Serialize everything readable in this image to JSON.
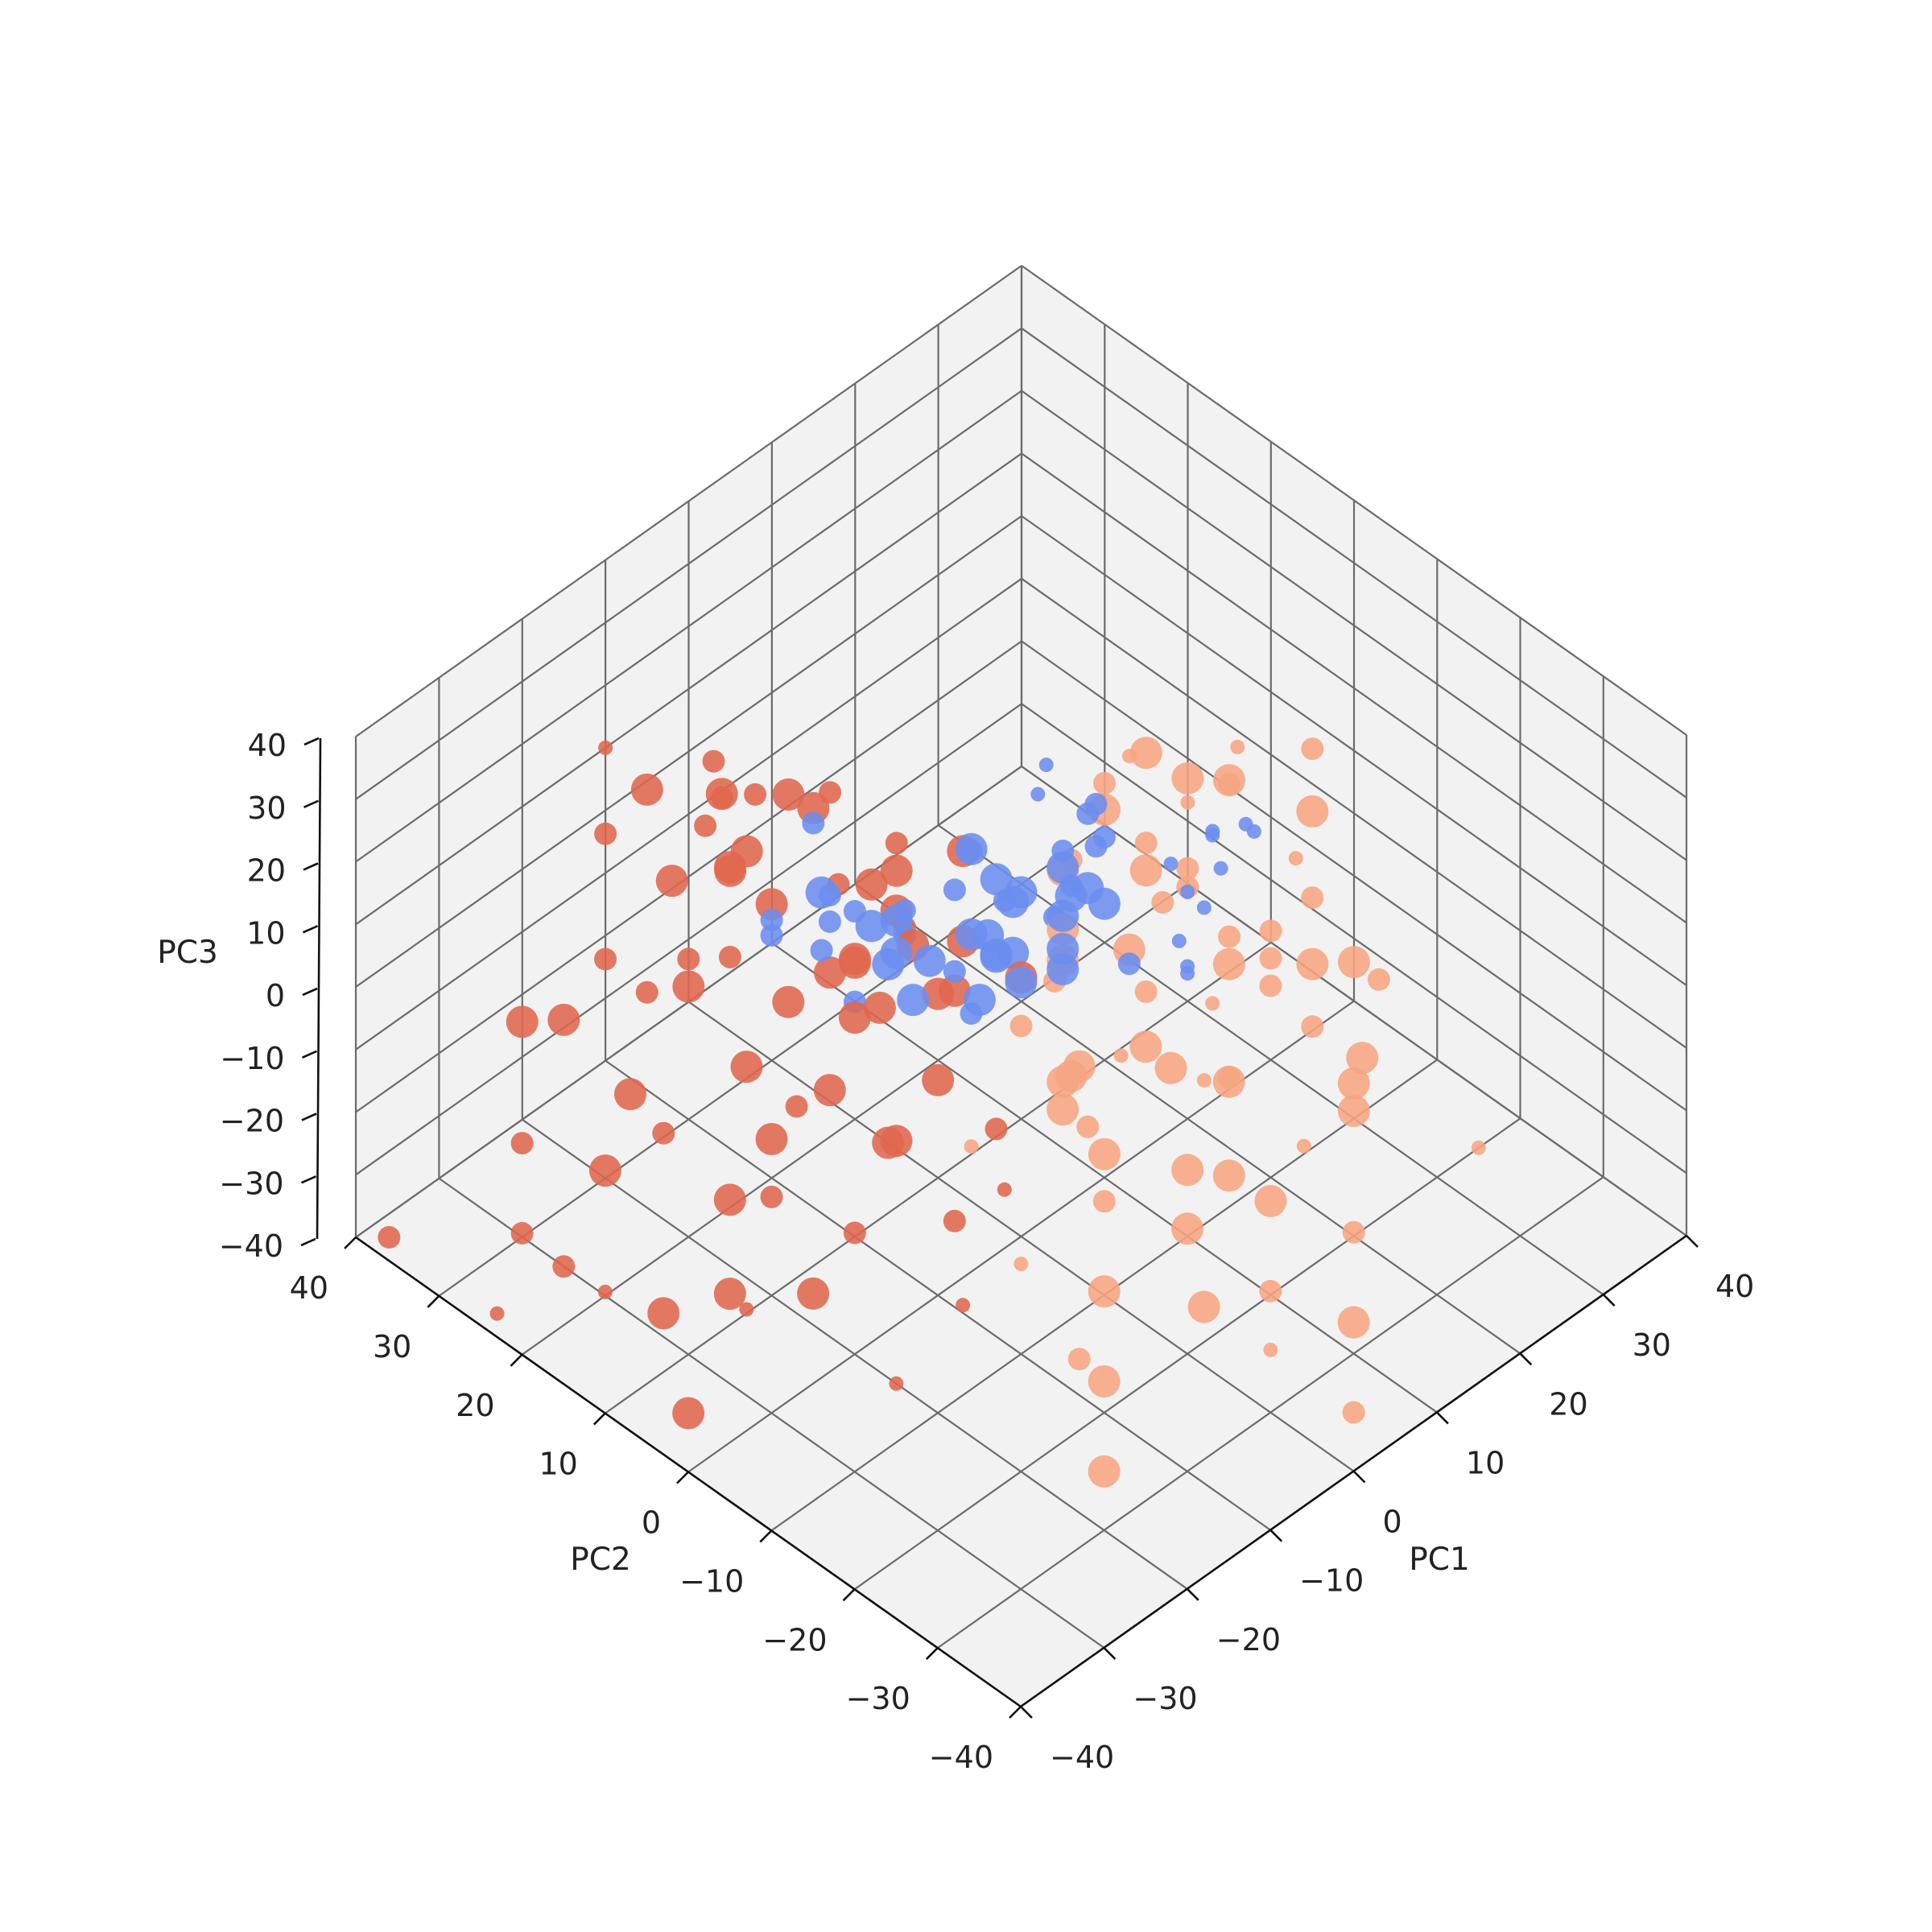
{
  "chart_data": {
    "type": "scatter",
    "projection": "3d",
    "xlabel": "PC1",
    "ylabel": "PC2",
    "zlabel": "PC3",
    "xlim": [
      -40,
      40
    ],
    "ylim": [
      -40,
      40
    ],
    "zlim": [
      -40,
      40
    ],
    "ticks": {
      "x": [
        "−40",
        "−30",
        "−20",
        "−10",
        "0",
        "10",
        "20",
        "30",
        "40"
      ],
      "y": [
        "−40",
        "−30",
        "−20",
        "−10",
        "0",
        "10",
        "20",
        "30",
        "40"
      ],
      "z": [
        "−40",
        "−30",
        "−20",
        "−10",
        "0",
        "10",
        "20",
        "30",
        "40"
      ]
    },
    "grid": true,
    "legend": "none",
    "marker_size_range": [
      1,
      4
    ],
    "series": [
      {
        "color": "#6b8def",
        "points": [
          [
            4,
            -5,
            30,
            2
          ],
          [
            15,
            12,
            10,
            1
          ],
          [
            10,
            1,
            12,
            2
          ],
          [
            3,
            -2,
            18,
            3
          ],
          [
            0,
            0,
            15,
            3
          ],
          [
            -5,
            -5,
            10,
            3
          ],
          [
            -3,
            1,
            10,
            3
          ],
          [
            4,
            5,
            5,
            3
          ],
          [
            -7,
            1,
            8,
            2
          ],
          [
            6,
            12,
            5,
            3
          ],
          [
            2,
            4,
            8,
            2
          ],
          [
            -6,
            5,
            5,
            3
          ],
          [
            1,
            9,
            6,
            2
          ],
          [
            -2,
            1,
            6,
            3
          ],
          [
            8,
            2,
            5,
            3
          ],
          [
            -10,
            5,
            10,
            3
          ],
          [
            -8,
            15,
            8,
            2
          ],
          [
            -10,
            10,
            12,
            2
          ],
          [
            -12,
            12,
            15,
            3
          ],
          [
            -8,
            6,
            14,
            2
          ],
          [
            -6,
            12,
            4,
            3
          ],
          [
            1,
            4,
            0,
            3
          ],
          [
            3,
            9,
            -3,
            3
          ],
          [
            -3,
            12,
            2,
            3
          ],
          [
            -10,
            14,
            2,
            2
          ],
          [
            9,
            4,
            -1,
            3
          ],
          [
            11,
            5,
            1,
            2
          ],
          [
            0,
            14,
            -5,
            2
          ],
          [
            -4,
            12,
            -4,
            3
          ],
          [
            -1,
            4,
            -5,
            3
          ],
          [
            5,
            6,
            -5,
            3
          ],
          [
            0,
            6,
            -10,
            2
          ],
          [
            -5,
            8,
            -5,
            3
          ],
          [
            10,
            6,
            -4,
            2
          ],
          [
            -5,
            20,
            12,
            2
          ],
          [
            -12,
            18,
            5,
            2
          ],
          [
            -6,
            17,
            0,
            2
          ],
          [
            -8,
            22,
            -5,
            2
          ],
          [
            -6,
            14,
            -10,
            2
          ],
          [
            3,
            -2,
            5,
            3
          ],
          [
            6,
            9,
            3,
            3
          ],
          [
            15,
            5,
            5,
            2
          ],
          [
            12,
            10,
            10,
            1
          ],
          [
            13,
            -5,
            12,
            1
          ],
          [
            2,
            -11,
            12,
            2
          ],
          [
            8,
            -11,
            10,
            1
          ],
          [
            9,
            -11,
            5,
            1
          ],
          [
            10,
            -10,
            2,
            1
          ],
          [
            19,
            -4,
            10,
            1
          ],
          [
            15,
            -7,
            5,
            1
          ],
          [
            22,
            -1,
            5,
            1
          ],
          [
            23,
            -4,
            8,
            1
          ],
          [
            25,
            -3,
            4,
            1
          ],
          [
            18,
            -2,
            0,
            1
          ],
          [
            22,
            -2,
            0,
            1
          ],
          [
            5,
            0,
            -2,
            3
          ],
          [
            12,
            2,
            0,
            3
          ],
          [
            16,
            8,
            5,
            2
          ],
          [
            14,
            9,
            0,
            2
          ],
          [
            8,
            14,
            1,
            2
          ],
          [
            15,
            7,
            -5,
            3
          ]
        ]
      },
      {
        "color": "#e0664d",
        "points": [
          [
            -3,
            25,
            10,
            3
          ],
          [
            -5,
            28,
            0,
            3
          ],
          [
            0,
            25,
            5,
            3
          ],
          [
            5,
            28,
            0,
            2
          ],
          [
            -5,
            30,
            -5,
            3
          ],
          [
            -2,
            35,
            5,
            2
          ],
          [
            0,
            38,
            -10,
            2
          ],
          [
            -10,
            40,
            10,
            1
          ],
          [
            -3,
            15,
            5,
            3
          ],
          [
            5,
            20,
            -5,
            3
          ],
          [
            -5,
            15,
            -5,
            3
          ],
          [
            -10,
            25,
            5,
            3
          ],
          [
            -12,
            30,
            0,
            3
          ],
          [
            -3,
            10,
            0,
            3
          ],
          [
            3,
            10,
            -5,
            3
          ],
          [
            8,
            15,
            0,
            3
          ],
          [
            -5,
            18,
            -10,
            3
          ],
          [
            -8,
            22,
            0,
            3
          ],
          [
            -10,
            18,
            -10,
            3
          ],
          [
            -15,
            20,
            0,
            2
          ],
          [
            -15,
            25,
            -5,
            2
          ],
          [
            -20,
            20,
            0,
            3
          ],
          [
            -18,
            15,
            -10,
            3
          ],
          [
            -20,
            30,
            -5,
            2
          ],
          [
            -25,
            30,
            -10,
            3
          ],
          [
            -25,
            35,
            -15,
            3
          ],
          [
            -30,
            30,
            -25,
            2
          ],
          [
            -22,
            25,
            -20,
            3
          ],
          [
            -30,
            20,
            -20,
            3
          ],
          [
            -35,
            25,
            -30,
            2
          ],
          [
            -38,
            38,
            -40,
            2
          ],
          [
            -25,
            10,
            -20,
            3
          ],
          [
            -20,
            10,
            -15,
            3
          ],
          [
            -15,
            8,
            -10,
            3
          ],
          [
            -10,
            10,
            -5,
            3
          ],
          [
            0,
            20,
            -15,
            3
          ],
          [
            3,
            25,
            -10,
            2
          ],
          [
            5,
            15,
            -20,
            3
          ],
          [
            -10,
            5,
            -20,
            3
          ],
          [
            -12,
            15,
            -22,
            2
          ],
          [
            -15,
            5,
            -30,
            2
          ],
          [
            -20,
            5,
            -35,
            3
          ],
          [
            -25,
            10,
            -35,
            3
          ],
          [
            -18,
            25,
            -30,
            2
          ],
          [
            -28,
            15,
            -40,
            3
          ],
          [
            -30,
            25,
            -40,
            2
          ],
          [
            -35,
            15,
            -30,
            1
          ],
          [
            -38,
            25,
            -40,
            1
          ],
          [
            -8,
            0,
            -30,
            2
          ],
          [
            -12,
            -5,
            -35,
            1
          ],
          [
            -20,
            -5,
            -40,
            1
          ],
          [
            -35,
            5,
            -40,
            3
          ],
          [
            -15,
            30,
            -15,
            2
          ],
          [
            -5,
            12,
            -10,
            3
          ],
          [
            -5,
            5,
            -15,
            3
          ],
          [
            -3,
            0,
            -20,
            2
          ],
          [
            2,
            10,
            -12,
            3
          ],
          [
            5,
            5,
            -8,
            3
          ],
          [
            0,
            15,
            -2,
            3
          ],
          [
            6,
            20,
            -15,
            2
          ],
          [
            -8,
            28,
            12,
            3
          ],
          [
            -10,
            35,
            8,
            3
          ],
          [
            -3,
            33,
            2,
            2
          ],
          [
            -12,
            38,
            0,
            2
          ],
          [
            3,
            35,
            -5,
            2
          ],
          [
            10,
            25,
            -10,
            2
          ],
          [
            -8,
            8,
            -25,
            3
          ],
          [
            -18,
            12,
            -28,
            2
          ],
          [
            -28,
            5,
            -30,
            1
          ],
          [
            -5,
            -3,
            -25,
            1
          ]
        ]
      },
      {
        "color": "#f7a582",
        "points": [
          [
            25,
            5,
            5,
            3
          ],
          [
            30,
            5,
            0,
            3
          ],
          [
            35,
            0,
            -5,
            3
          ],
          [
            25,
            10,
            -10,
            2
          ],
          [
            30,
            15,
            -5,
            3
          ],
          [
            20,
            0,
            0,
            2
          ],
          [
            20,
            10,
            0,
            3
          ],
          [
            35,
            10,
            -10,
            2
          ],
          [
            15,
            0,
            -15,
            2
          ],
          [
            10,
            5,
            -10,
            3
          ],
          [
            5,
            0,
            -20,
            3
          ],
          [
            0,
            -5,
            -15,
            3
          ],
          [
            15,
            10,
            -5,
            3
          ],
          [
            25,
            -5,
            -10,
            2
          ],
          [
            15,
            -10,
            -20,
            3
          ],
          [
            20,
            -10,
            -5,
            2
          ],
          [
            30,
            -5,
            -20,
            3
          ],
          [
            10,
            -15,
            -10,
            2
          ],
          [
            35,
            0,
            5,
            2
          ],
          [
            25,
            -10,
            0,
            2
          ],
          [
            15,
            -15,
            0,
            2
          ],
          [
            5,
            -10,
            -5,
            3
          ],
          [
            10,
            5,
            -5,
            3
          ],
          [
            20,
            5,
            -5,
            3
          ],
          [
            25,
            0,
            -20,
            3
          ],
          [
            30,
            -10,
            -15,
            3
          ],
          [
            5,
            -15,
            -20,
            3
          ],
          [
            0,
            -20,
            -20,
            3
          ],
          [
            -5,
            -15,
            -30,
            3
          ],
          [
            -3,
            -25,
            -25,
            3
          ],
          [
            10,
            -20,
            -25,
            3
          ],
          [
            15,
            -25,
            -30,
            2
          ],
          [
            20,
            -20,
            -20,
            3
          ],
          [
            25,
            -15,
            -25,
            3
          ],
          [
            30,
            -5,
            -30,
            2
          ],
          [
            0,
            -10,
            -25,
            2
          ],
          [
            -10,
            -20,
            -35,
            3
          ],
          [
            -15,
            -25,
            -40,
            3
          ],
          [
            10,
            -30,
            -35,
            3
          ],
          [
            5,
            -25,
            -30,
            2
          ],
          [
            15,
            -10,
            -35,
            3
          ],
          [
            30,
            5,
            -25,
            2
          ],
          [
            33,
            -8,
            -35,
            3
          ],
          [
            38,
            -5,
            -30,
            2
          ],
          [
            35,
            -20,
            -40,
            1
          ],
          [
            8,
            0,
            -30,
            2
          ],
          [
            12,
            2,
            -40,
            3
          ],
          [
            20,
            -2,
            -32,
            1
          ],
          [
            22,
            -12,
            -35,
            1
          ],
          [
            28,
            2,
            10,
            1
          ],
          [
            18,
            8,
            8,
            2
          ],
          [
            25,
            12,
            2,
            1
          ],
          [
            2,
            -5,
            -10,
            3
          ],
          [
            -2,
            -8,
            -5,
            3
          ],
          [
            8,
            -5,
            3,
            3
          ],
          [
            3,
            3,
            -12,
            2
          ],
          [
            10,
            -8,
            -15,
            3
          ],
          [
            18,
            -5,
            -15,
            1
          ],
          [
            22,
            5,
            -12,
            2
          ],
          [
            28,
            8,
            -18,
            2
          ],
          [
            -8,
            -15,
            -38,
            2
          ],
          [
            0,
            -30,
            -30,
            1
          ],
          [
            5,
            -35,
            -40,
            2
          ],
          [
            -5,
            -5,
            -35,
            1
          ],
          [
            12,
            8,
            -18,
            2
          ],
          [
            18,
            12,
            -8,
            2
          ],
          [
            15,
            3,
            -28,
            1
          ],
          [
            2,
            8,
            -35,
            1
          ],
          [
            32,
            12,
            -12,
            1
          ],
          [
            38,
            5,
            -20,
            1
          ]
        ]
      }
    ]
  }
}
